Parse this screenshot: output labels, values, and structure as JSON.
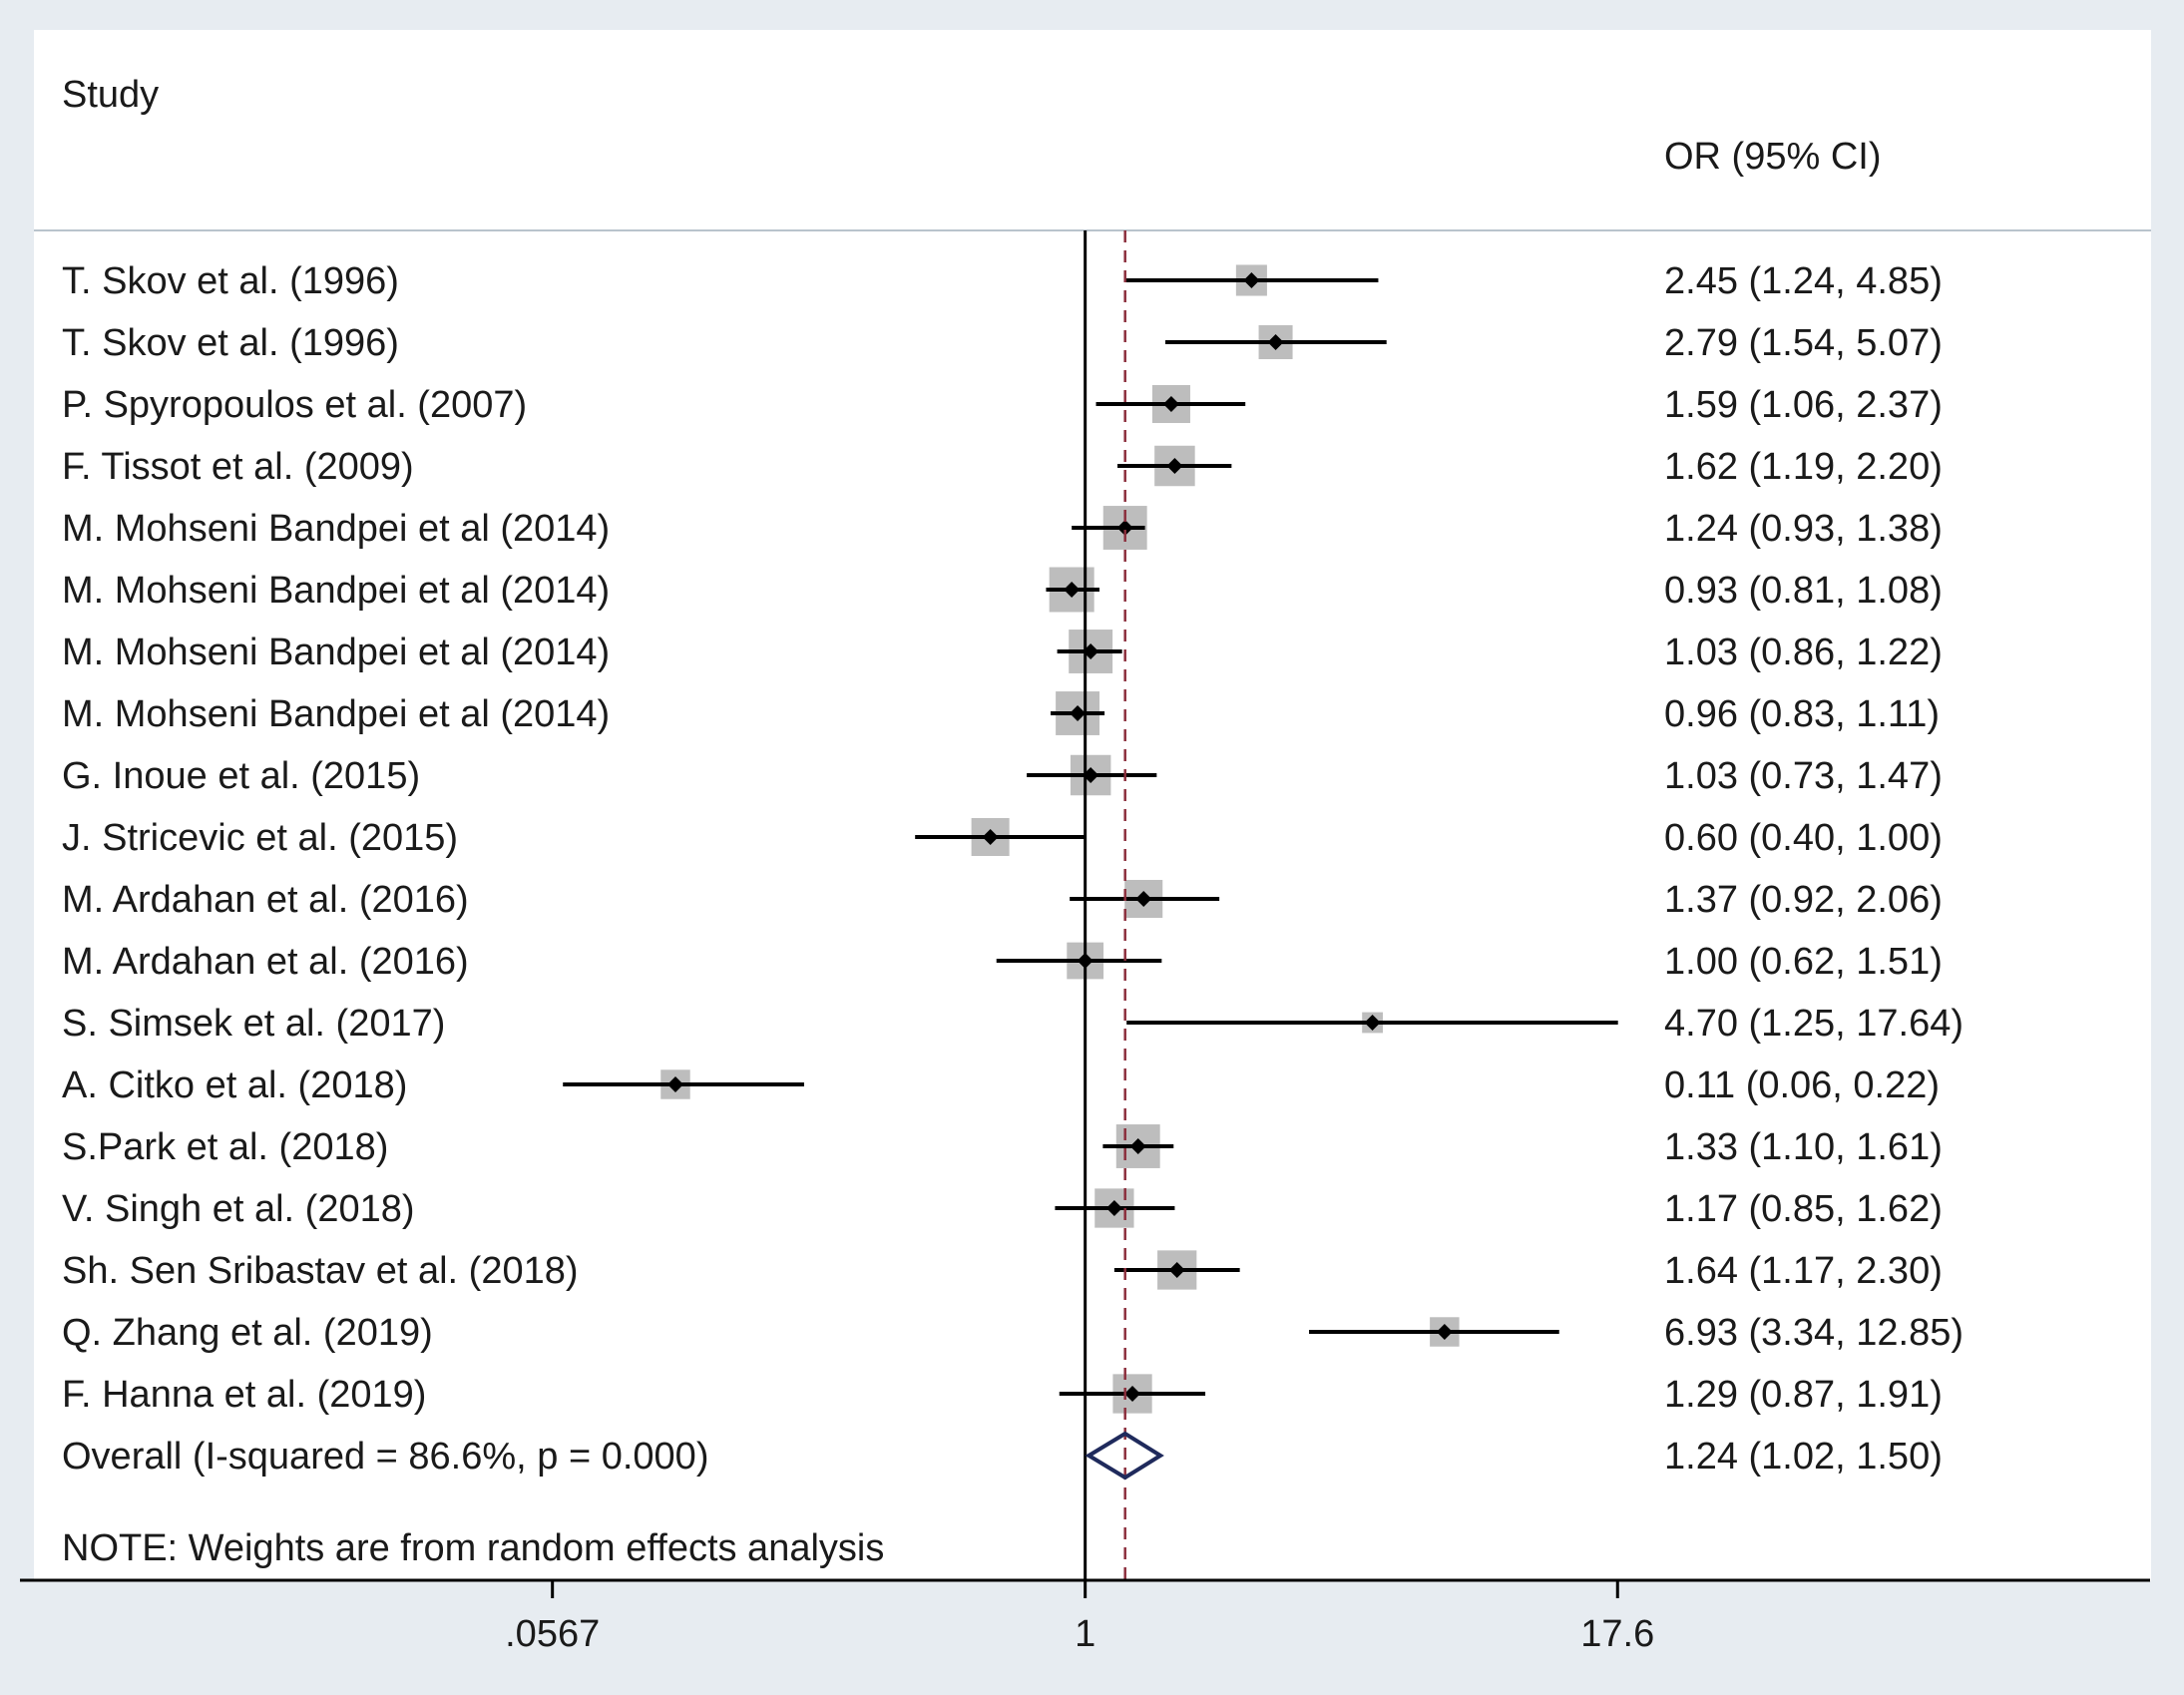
{
  "chart_data": {
    "type": "forest",
    "study_header": "Study",
    "estimate_header": "OR (95% CI)",
    "scale": "log",
    "null_value": 1,
    "xlim": [
      0.00322,
      310
    ],
    "x_ticks": [
      {
        "value": 0.0567,
        "label": ".0567"
      },
      {
        "value": 1,
        "label": "1"
      },
      {
        "value": 17.6,
        "label": "17.6"
      }
    ],
    "studies": [
      {
        "label": "T. Skov et al. (1996)",
        "or": 2.45,
        "lo": 1.24,
        "hi": 4.85,
        "ci_text": "2.45 (1.24, 4.85)",
        "weight": 1.0
      },
      {
        "label": "T. Skov et al. (1996)",
        "or": 2.79,
        "lo": 1.54,
        "hi": 5.07,
        "ci_text": "2.79 (1.54, 5.07)",
        "weight": 1.2
      },
      {
        "label": "P. Spyropoulos et al. (2007)",
        "or": 1.59,
        "lo": 1.06,
        "hi": 2.37,
        "ci_text": "1.59 (1.06, 2.37)",
        "weight": 1.5
      },
      {
        "label": "F. Tissot et al. (2009)",
        "or": 1.62,
        "lo": 1.19,
        "hi": 2.2,
        "ci_text": "1.62 (1.19, 2.20)",
        "weight": 1.7
      },
      {
        "label": "M. Mohseni Bandpei et al (2014)",
        "or": 1.24,
        "lo": 0.93,
        "hi": 1.38,
        "ci_text": "1.24 (0.93, 1.38)",
        "weight": 2.0
      },
      {
        "label": "M. Mohseni Bandpei et al (2014)",
        "or": 0.93,
        "lo": 0.81,
        "hi": 1.08,
        "ci_text": "0.93 (0.81, 1.08)",
        "weight": 2.1
      },
      {
        "label": "M. Mohseni Bandpei et al (2014)",
        "or": 1.03,
        "lo": 0.86,
        "hi": 1.22,
        "ci_text": "1.03 (0.86, 1.22)",
        "weight": 2.0
      },
      {
        "label": "M. Mohseni Bandpei et al (2014)",
        "or": 0.96,
        "lo": 0.83,
        "hi": 1.11,
        "ci_text": "0.96 (0.83, 1.11)",
        "weight": 2.0
      },
      {
        "label": "G. Inoue  et al. (2015)",
        "or": 1.03,
        "lo": 0.73,
        "hi": 1.47,
        "ci_text": "1.03 (0.73, 1.47)",
        "weight": 1.7
      },
      {
        "label": "J. Stricevic et al. (2015)",
        "or": 0.6,
        "lo": 0.4,
        "hi": 1.0,
        "ci_text": "0.60 (0.40, 1.00)",
        "weight": 1.5
      },
      {
        "label": "M. Ardahan et al. (2016)",
        "or": 1.37,
        "lo": 0.92,
        "hi": 2.06,
        "ci_text": "1.37 (0.92, 2.06)",
        "weight": 1.5
      },
      {
        "label": "M. Ardahan et al. (2016)",
        "or": 1.0,
        "lo": 0.62,
        "hi": 1.51,
        "ci_text": "1.00 (0.62, 1.51)",
        "weight": 1.4
      },
      {
        "label": "S. Simsek et al. (2017)",
        "or": 4.7,
        "lo": 1.25,
        "hi": 17.64,
        "ci_text": "4.70 (1.25, 17.64)",
        "weight": 0.45
      },
      {
        "label": "A. Citko et al. (2018)",
        "or": 0.11,
        "lo": 0.06,
        "hi": 0.22,
        "ci_text": "0.11 (0.06, 0.22)",
        "weight": 0.9
      },
      {
        "label": "S.Park et al. (2018)",
        "or": 1.33,
        "lo": 1.1,
        "hi": 1.61,
        "ci_text": "1.33 (1.10, 1.61)",
        "weight": 2.0
      },
      {
        "label": "V. Singh et al. (2018)",
        "or": 1.17,
        "lo": 0.85,
        "hi": 1.62,
        "ci_text": "1.17 (0.85, 1.62)",
        "weight": 1.6
      },
      {
        "label": "Sh. Sen Sribastav et al. (2018)",
        "or": 1.64,
        "lo": 1.17,
        "hi": 2.3,
        "ci_text": "1.64 (1.17, 2.30)",
        "weight": 1.6
      },
      {
        "label": "Q. Zhang et al. (2019)",
        "or": 6.93,
        "lo": 3.34,
        "hi": 12.85,
        "ci_text": "6.93 (3.34, 12.85)",
        "weight": 0.9
      },
      {
        "label": "F. Hanna et al. (2019)",
        "or": 1.29,
        "lo": 0.87,
        "hi": 1.91,
        "ci_text": "1.29 (0.87, 1.91)",
        "weight": 1.6
      }
    ],
    "overall": {
      "label": "Overall  (I-squared = 86.6%, p = 0.000)",
      "or": 1.24,
      "lo": 1.02,
      "hi": 1.5,
      "ci_text": "1.24 (1.02, 1.50)"
    },
    "note": "NOTE: Weights are from random effects analysis",
    "colors": {
      "ci_line": "#000000",
      "weight_box": "#bdbdbd",
      "point": "#000000",
      "overall_diamond": "#1f2a5c",
      "overall_line": "#8b2e3c",
      "null_line": "#000000",
      "panel_border": "#b9c3cc"
    }
  }
}
